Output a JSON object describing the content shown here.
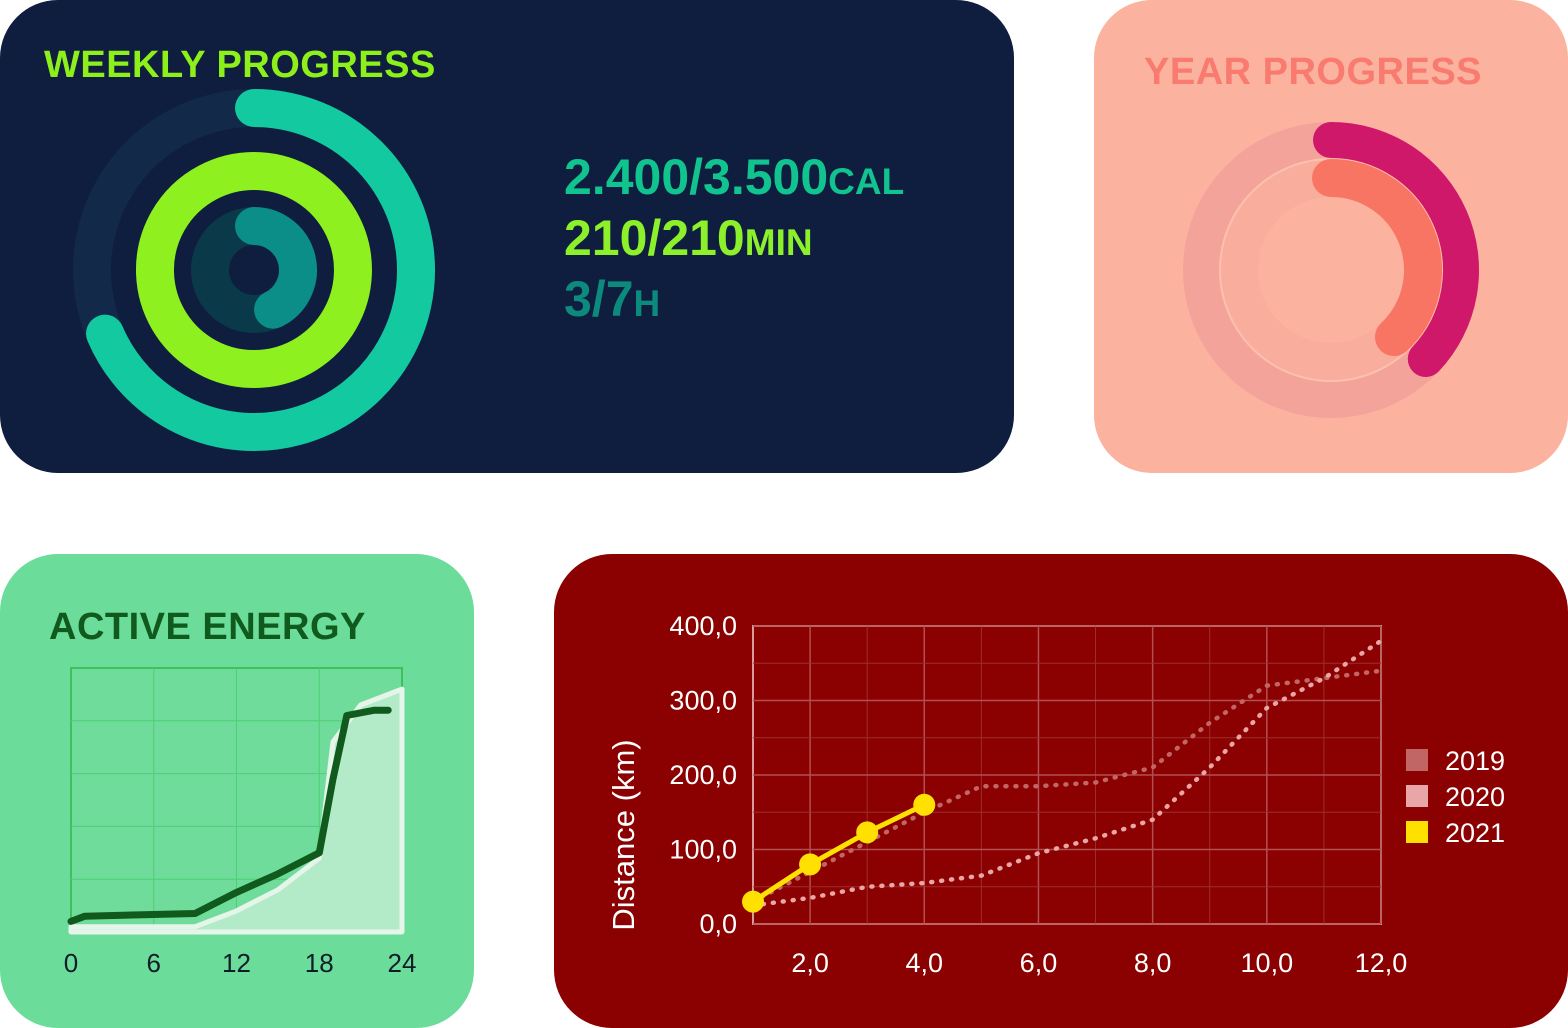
{
  "weekly": {
    "title": "WEEKLY PROGRESS",
    "stats": [
      {
        "value": "2.400/3.500",
        "unit": "CAL"
      },
      {
        "value": "210/210",
        "unit": "MIN"
      },
      {
        "value": "3/7",
        "unit": "H"
      }
    ],
    "rings": [
      {
        "metric": "calories",
        "current": 2400,
        "goal": 3500,
        "color": "#13c9a0"
      },
      {
        "metric": "minutes",
        "current": 210,
        "goal": 210,
        "color": "#8ff020"
      },
      {
        "metric": "hours",
        "current": 3,
        "goal": 7,
        "color": "#0b8d88"
      }
    ],
    "colors": {
      "background": "#0f1d3f",
      "title": "#8df01b"
    }
  },
  "year": {
    "title": "YEAR PROGRESS",
    "rings": [
      {
        "name": "outer",
        "progress": 0.37,
        "color": "#d0186a"
      },
      {
        "name": "inner",
        "progress": 0.38,
        "color": "#f97563"
      }
    ],
    "colors": {
      "background": "#fbb3a0",
      "title": "#f97b70"
    }
  },
  "energy": {
    "title": "ACTIVE ENERGY",
    "chart_data": {
      "type": "line",
      "x_ticks": [
        "0",
        "6",
        "12",
        "18",
        "24"
      ],
      "xlim": [
        0,
        24
      ],
      "ylim": [
        0,
        100
      ],
      "grid": true,
      "series": [
        {
          "style": "area",
          "color": "#b3ebc9",
          "points": [
            [
              0,
              2
            ],
            [
              9,
              2
            ],
            [
              12,
              8
            ],
            [
              15,
              16
            ],
            [
              18,
              28
            ],
            [
              19,
              72
            ],
            [
              21,
              86
            ],
            [
              24,
              92
            ]
          ]
        },
        {
          "style": "line",
          "color": "#0f5a1c",
          "points": [
            [
              0,
              4
            ],
            [
              1,
              6
            ],
            [
              9,
              7
            ],
            [
              12,
              15
            ],
            [
              15,
              22
            ],
            [
              18,
              30
            ],
            [
              19,
              58
            ],
            [
              20,
              82
            ],
            [
              22,
              84
            ],
            [
              23,
              84
            ]
          ]
        }
      ]
    }
  },
  "distance": {
    "chart_data": {
      "type": "line",
      "ylabel": "Distance (km)",
      "x_ticks": [
        "2,0",
        "4,0",
        "6,0",
        "8,0",
        "10,0",
        "12,0"
      ],
      "y_ticks": [
        "0,0",
        "100,0",
        "200,0",
        "300,0",
        "400,0"
      ],
      "xlim": [
        1,
        12
      ],
      "ylim": [
        0,
        400
      ],
      "grid": true,
      "legend_position": "right",
      "series": [
        {
          "name": "2019",
          "color": "#c26565",
          "style": "dotted",
          "x": [
            1,
            2,
            3,
            4,
            5,
            6,
            7,
            8,
            9,
            10,
            11,
            12
          ],
          "y": [
            30,
            70,
            110,
            150,
            185,
            185,
            190,
            210,
            270,
            320,
            330,
            340
          ]
        },
        {
          "name": "2020",
          "color": "#e8a6a6",
          "style": "dotted",
          "x": [
            1,
            2,
            3,
            4,
            5,
            6,
            7,
            8,
            9,
            10,
            11,
            12
          ],
          "y": [
            25,
            35,
            50,
            55,
            65,
            95,
            115,
            140,
            210,
            290,
            330,
            380
          ]
        },
        {
          "name": "2021",
          "color": "#ffe000",
          "style": "solid-markers",
          "x": [
            1,
            2,
            3,
            4
          ],
          "y": [
            30,
            80,
            123,
            160
          ]
        }
      ]
    }
  }
}
